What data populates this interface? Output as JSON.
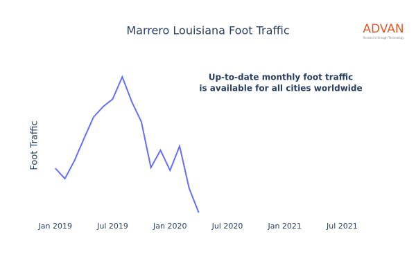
{
  "chart_data": {
    "type": "line",
    "title": "Marrero Louisiana Foot Traffic",
    "y_label": "Foot Traffic",
    "annotation": [
      "Up-to-date monthly foot traffic",
      "is available for all cities worldwide"
    ],
    "logo": "ADVAN",
    "logo_tagline": "Research through Technology",
    "x": [
      "2019-01",
      "2019-02",
      "2019-03",
      "2019-04",
      "2019-05",
      "2019-06",
      "2019-07",
      "2019-08",
      "2019-09",
      "2019-10",
      "2019-11",
      "2019-12",
      "2020-01",
      "2020-02",
      "2020-03",
      "2020-04"
    ],
    "series": [
      {
        "name": "Foot Traffic",
        "color": "#636efa",
        "values": [
          77,
          62,
          88,
          120,
          151,
          166,
          177,
          209,
          173,
          144,
          78,
          103,
          74,
          109,
          48,
          13
        ]
      }
    ],
    "xlim": [
      "2018-12",
      "2021-09"
    ],
    "xticks": [
      {
        "value": "2019-01",
        "label": "Jan 2019"
      },
      {
        "value": "2019-07",
        "label": "Jul 2019"
      },
      {
        "value": "2020-01",
        "label": "Jan 2020"
      },
      {
        "value": "2020-07",
        "label": "Jul 2020"
      },
      {
        "value": "2021-01",
        "label": "Jan 2021"
      },
      {
        "value": "2021-07",
        "label": "Jul 2021"
      }
    ],
    "ylim": [
      0,
      230
    ]
  }
}
